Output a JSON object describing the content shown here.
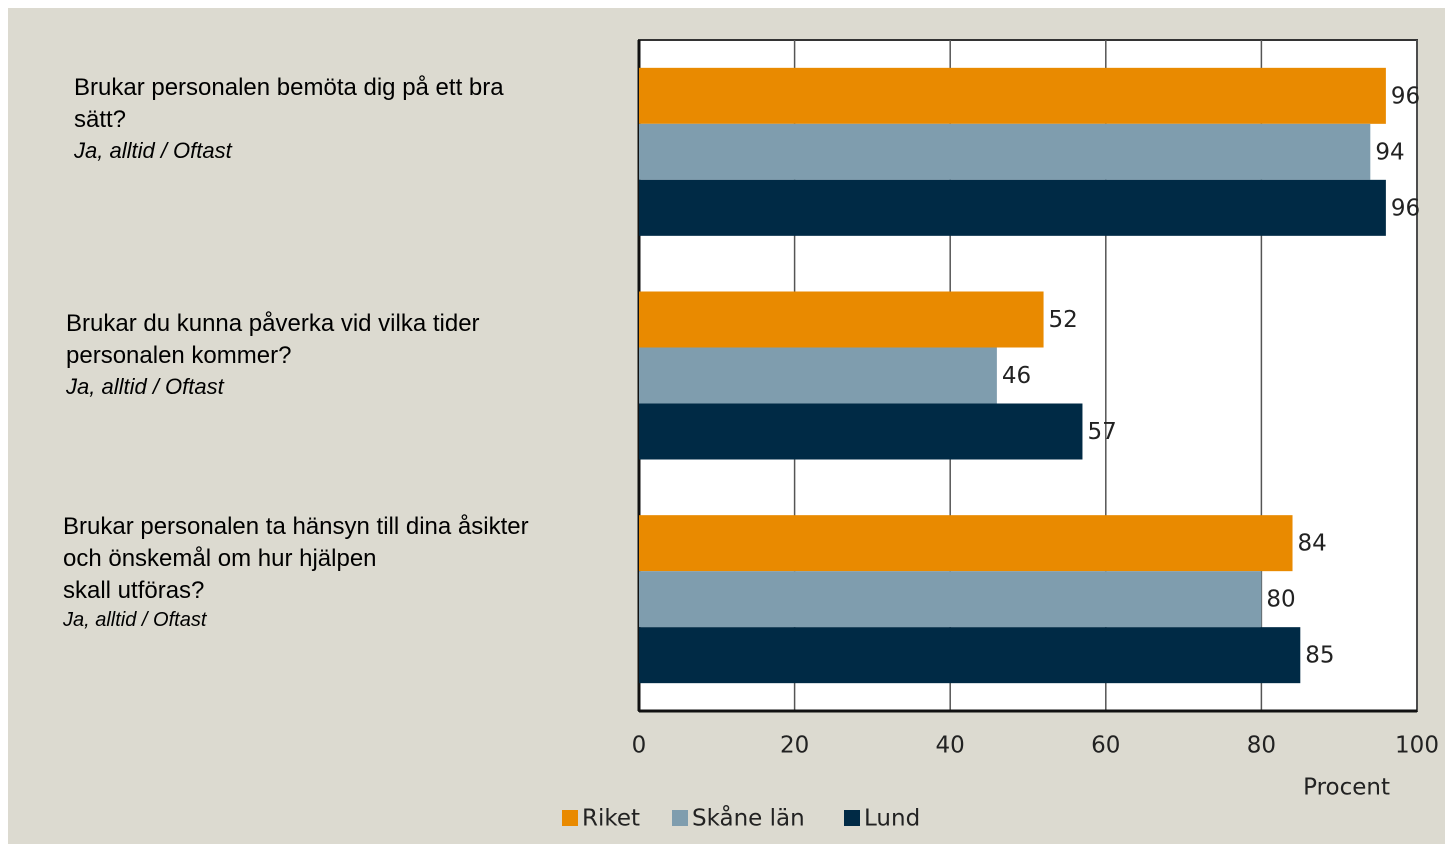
{
  "chart_data": {
    "type": "barh",
    "categories": [
      "Brukar personalen bemöta dig på ett bra\nsätt?",
      "Brukar du kunna påverka vid vilka tider\npersonalen kommer?",
      "Brukar personalen ta hänsyn till dina åsikter\noch önskemål om hur hjälpen\nskall utföras?"
    ],
    "category_notes": [
      "Ja, alltid / Oftast",
      "Ja, alltid / Oftast",
      "Ja, alltid / Oftast"
    ],
    "series": [
      {
        "name": "Riket",
        "color": "#e98a00",
        "values": [
          96,
          52,
          84
        ]
      },
      {
        "name": "Skåne län",
        "color": "#7f9dae",
        "values": [
          94,
          46,
          80
        ]
      },
      {
        "name": "Lund",
        "color": "#002a45",
        "values": [
          96,
          57,
          85
        ]
      }
    ],
    "xlim": [
      0,
      100
    ],
    "xticks": [
      0,
      20,
      40,
      60,
      80,
      100
    ],
    "xlabel": "Procent",
    "grid": true,
    "legend": "bottom"
  }
}
